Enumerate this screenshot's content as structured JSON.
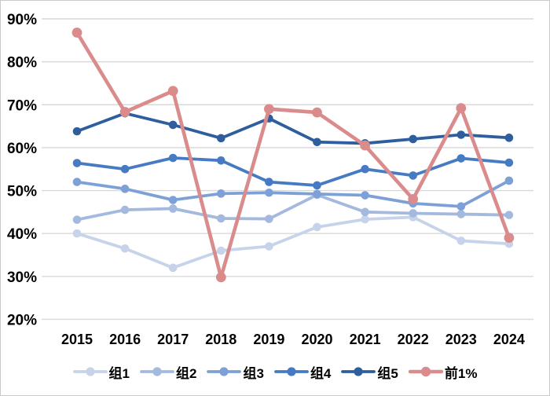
{
  "chart_data": {
    "type": "line",
    "x": [
      "2015",
      "2016",
      "2017",
      "2018",
      "2019",
      "2020",
      "2021",
      "2022",
      "2023",
      "2024"
    ],
    "series": [
      {
        "name": "组1",
        "color": "#c7d3ea",
        "values": [
          40.0,
          36.5,
          32.0,
          36.0,
          37.0,
          41.5,
          43.3,
          43.8,
          38.3,
          37.6
        ]
      },
      {
        "name": "组2",
        "color": "#a4b9de",
        "values": [
          43.2,
          45.5,
          45.8,
          43.5,
          43.4,
          49.0,
          45.0,
          44.7,
          44.5,
          44.3
        ]
      },
      {
        "name": "组3",
        "color": "#7da1d6",
        "values": [
          52.0,
          50.4,
          47.8,
          49.3,
          49.5,
          49.2,
          48.9,
          47.0,
          46.3,
          52.3
        ]
      },
      {
        "name": "组4",
        "color": "#467bc4",
        "values": [
          56.4,
          55.0,
          57.6,
          57.0,
          52.0,
          51.2,
          55.0,
          53.5,
          57.5,
          56.5
        ]
      },
      {
        "name": "组5",
        "color": "#2e5e9e",
        "values": [
          63.8,
          68.0,
          65.3,
          62.2,
          66.8,
          61.3,
          61.0,
          62.0,
          63.0,
          62.3
        ]
      },
      {
        "name": "前1%",
        "color": "#d98c8b",
        "values": [
          86.8,
          68.3,
          73.2,
          29.8,
          69.0,
          68.2,
          60.5,
          48.0,
          69.2,
          39.0
        ]
      }
    ],
    "title": "",
    "xlabel": "",
    "ylabel": "",
    "ylim": [
      20,
      90
    ],
    "ytick_step": 10,
    "ytick_labels": [
      "20%",
      "30%",
      "40%",
      "50%",
      "60%",
      "70%",
      "80%",
      "90%"
    ],
    "grid": true,
    "gridline_color": "#d9d9d9",
    "background_color": "#ffffff",
    "legend_position": "bottom"
  }
}
